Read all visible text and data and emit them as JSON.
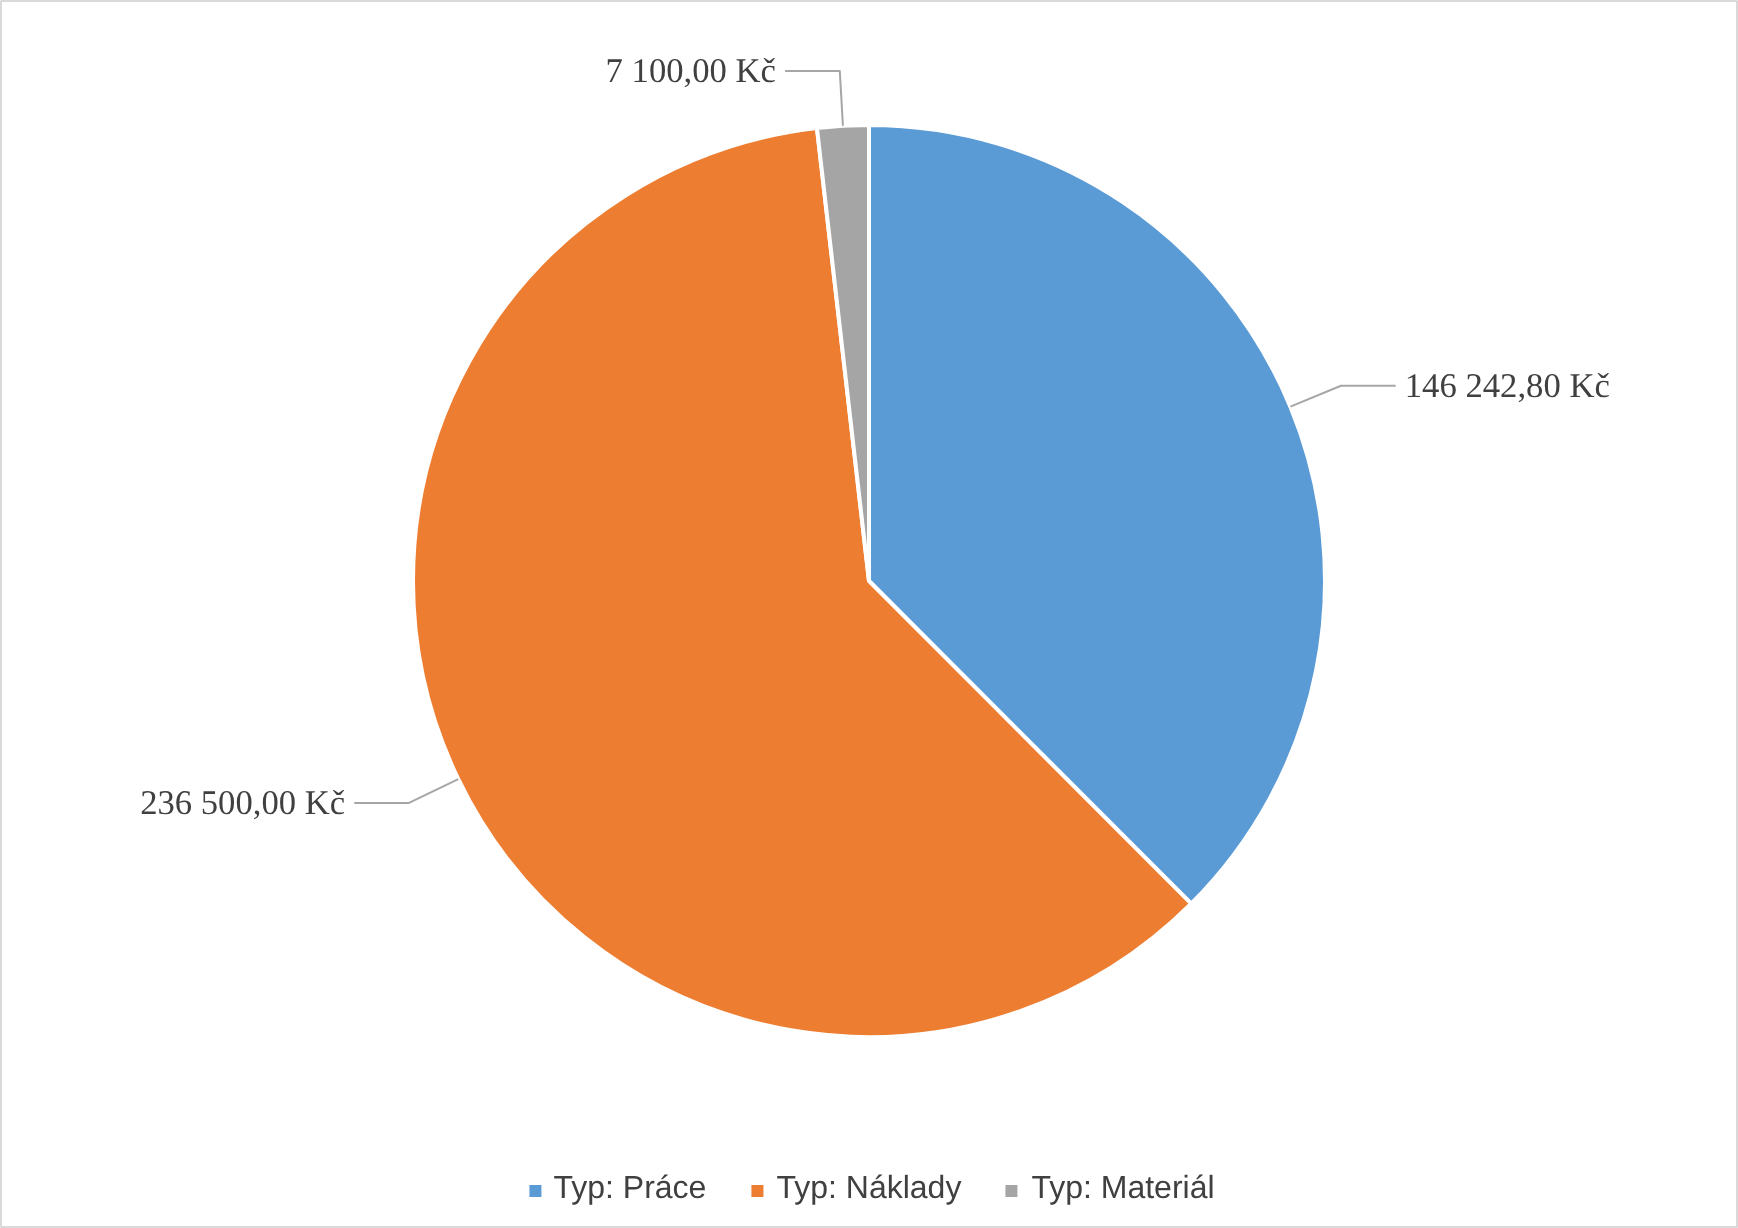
{
  "chart_data": {
    "type": "pie",
    "categories": [
      "Typ: Práce",
      "Typ: Náklady",
      "Typ: Materiál"
    ],
    "values": [
      146242.8,
      236500.0,
      7100.0
    ],
    "colors": [
      "#5b9bd5",
      "#ed7d31",
      "#a5a5a5"
    ],
    "value_labels": [
      "146 242,80 Kč",
      "236 500,00 Kč",
      "7 100,00 Kč"
    ],
    "legend": "bottom"
  }
}
